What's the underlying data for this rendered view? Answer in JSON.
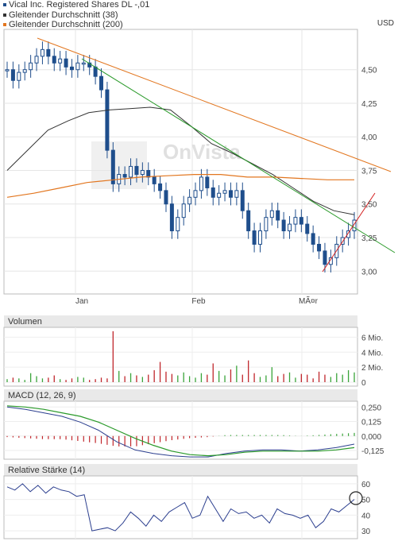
{
  "legend": {
    "stock": {
      "label": "Vical Inc. Registered Shares DL -,01",
      "color": "#1f4e8c"
    },
    "ma38": {
      "label": "Gleitender Durchschnitt (38)",
      "color": "#333333"
    },
    "ma200": {
      "label": "Gleitender Durchschnitt (200)",
      "color": "#e2761f"
    }
  },
  "currency": "USD",
  "watermark": "OnVista",
  "panels": {
    "volume": "Volumen",
    "macd": "MACD (12, 26, 9)",
    "rsi": "Relative Stärke (14)"
  },
  "chart_data": [
    {
      "type": "candlestick",
      "x_labels": [
        "Jan",
        "Feb",
        "MÃ¤r"
      ],
      "y_ticks": [
        "4,50",
        "4,25",
        "4,00",
        "3,75",
        "3,50",
        "3,25",
        "3,00"
      ],
      "ylim": [
        2.83,
        4.8
      ],
      "series": [
        {
          "name": "Vical Inc. Registered Shares DL -,01",
          "values": [
            4.5,
            4.42,
            4.48,
            4.5,
            4.55,
            4.6,
            4.65,
            4.6,
            4.55,
            4.58,
            4.52,
            4.5,
            4.55,
            4.55,
            4.52,
            4.45,
            4.35,
            3.9,
            3.65,
            3.72,
            3.7,
            3.78,
            3.72,
            3.75,
            3.7,
            3.65,
            3.6,
            3.5,
            3.3,
            3.4,
            3.5,
            3.55,
            3.6,
            3.7,
            3.62,
            3.55,
            3.58,
            3.6,
            3.55,
            3.6,
            3.45,
            3.3,
            3.2,
            3.3,
            3.4,
            3.45,
            3.38,
            3.3,
            3.35,
            3.4,
            3.35,
            3.28,
            3.2,
            3.15,
            3.05,
            3.1,
            3.2,
            3.25,
            3.3,
            3.38
          ]
        }
      ]
    },
    {
      "type": "line",
      "name": "Gleitender Durchschnitt (38)",
      "values": [
        3.75,
        3.9,
        4.05,
        4.12,
        4.18,
        4.2,
        4.21,
        4.22,
        4.2,
        4.08,
        3.95,
        3.88,
        3.8,
        3.72,
        3.62,
        3.52,
        3.45,
        3.42
      ]
    },
    {
      "type": "line",
      "name": "Gleitender Durchschnitt (200)",
      "values": [
        3.55,
        3.58,
        3.62,
        3.66,
        3.68,
        3.7,
        3.71,
        3.72,
        3.72,
        3.7,
        3.7,
        3.69,
        3.68,
        3.68
      ]
    },
    {
      "type": "bar",
      "name": "Volumen",
      "y_ticks": [
        "6 Mio.",
        "4 Mio.",
        "2 Mio.",
        "0"
      ],
      "ylim": [
        0,
        7
      ],
      "values": [
        0.4,
        0.6,
        0.5,
        0.3,
        1.2,
        0.8,
        0.5,
        0.6,
        0.9,
        0.4,
        0.3,
        0.5,
        0.7,
        0.6,
        0.3,
        0.4,
        0.6,
        0.5,
        6.8,
        1.5,
        0.8,
        1.2,
        0.9,
        0.7,
        1.0,
        1.6,
        2.7,
        1.4,
        1.1,
        0.9,
        1.3,
        0.8,
        0.6,
        1.2,
        1.0,
        2.5,
        1.5,
        0.9,
        1.7,
        2.2,
        1.0,
        2.9,
        1.2,
        0.7,
        0.9,
        2.0,
        0.8,
        1.1,
        1.3,
        0.6,
        1.1,
        1.0,
        0.5,
        1.4,
        1.0,
        0.7,
        1.2,
        1.0,
        1.6,
        1.3
      ]
    },
    {
      "type": "line",
      "name": "MACD (12, 26, 9)",
      "y_ticks": [
        "0,250",
        "0,125",
        "0,000",
        "-0,125"
      ],
      "ylim": [
        -0.2,
        0.3
      ],
      "macd": [
        0.25,
        0.23,
        0.2,
        0.17,
        0.12,
        0.05,
        -0.05,
        -0.12,
        -0.15,
        -0.17,
        -0.18,
        -0.18,
        -0.15,
        -0.13,
        -0.12,
        -0.12,
        -0.13,
        -0.12,
        -0.1,
        -0.07
      ],
      "signal": [
        0.26,
        0.25,
        0.23,
        0.2,
        0.17,
        0.12,
        0.05,
        -0.02,
        -0.08,
        -0.13,
        -0.16,
        -0.17,
        -0.16,
        -0.14,
        -0.13,
        -0.13,
        -0.13,
        -0.13,
        -0.12,
        -0.1
      ]
    },
    {
      "type": "line",
      "name": "Relative Stärke (14)",
      "y_ticks": [
        "60",
        "50",
        "40",
        "30"
      ],
      "ylim": [
        25,
        65
      ],
      "values": [
        58,
        56,
        60,
        55,
        59,
        54,
        58,
        56,
        55,
        52,
        53,
        30,
        31,
        32,
        30,
        35,
        42,
        38,
        33,
        40,
        36,
        42,
        45,
        48,
        38,
        40,
        52,
        44,
        36,
        44,
        41,
        42,
        38,
        40,
        35,
        44,
        41,
        40,
        38,
        40,
        32,
        36,
        44,
        42,
        46,
        50
      ]
    }
  ]
}
